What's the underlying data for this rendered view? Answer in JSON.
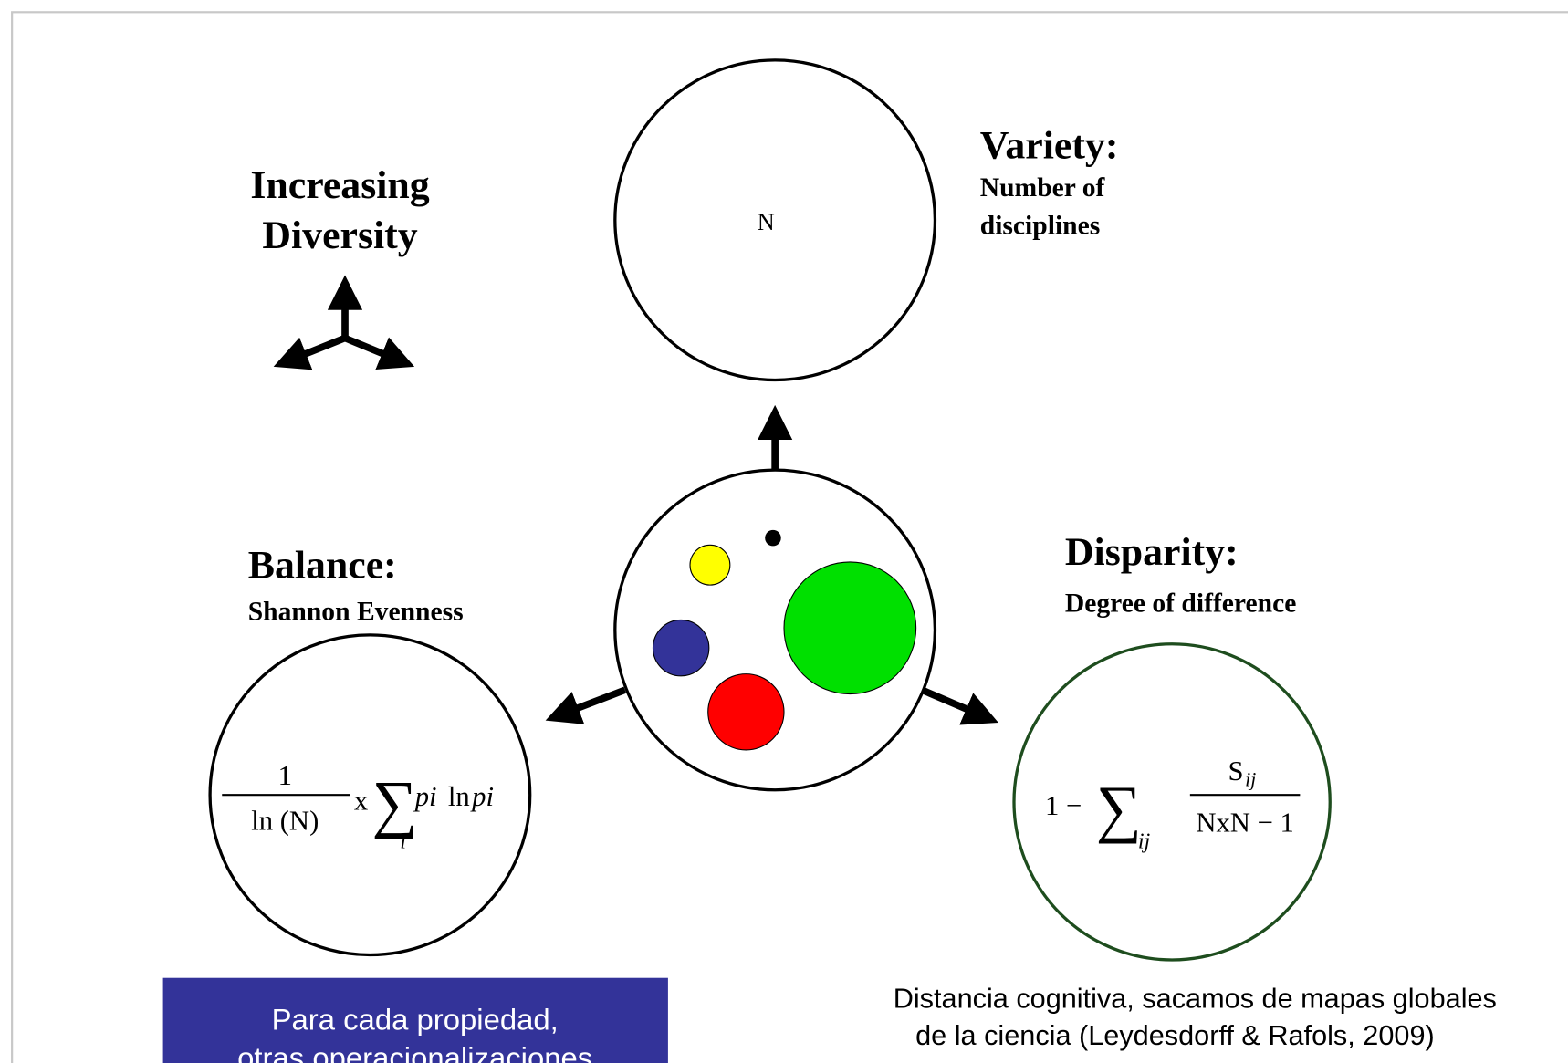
{
  "indicator": {
    "lines": [
      "Increasing",
      "Diversity"
    ]
  },
  "variety": {
    "title": "Variety:",
    "lines": [
      "Number of",
      "disciplines"
    ],
    "symbol": "N"
  },
  "balance": {
    "title": "Balance:",
    "subtitle": "Shannon Evenness",
    "formula": {
      "numerator": "1",
      "denominator": "ln (N)",
      "times": "x",
      "sum": "∑",
      "index": "i",
      "p1": "pi",
      "ln": "ln",
      "p2": "pi"
    }
  },
  "disparity": {
    "title": "Disparity:",
    "subtitle": "Degree of difference",
    "formula": {
      "one": "1 −",
      "sum": "∑",
      "index": "ij",
      "numerator": "S",
      "sub": "ij",
      "denominator": "NxN − 1"
    }
  },
  "note_left": {
    "lines": [
      "Para cada propiedad,",
      "otras operacionalizaciones"
    ]
  },
  "note_right": {
    "lines": [
      "Distancia cognitiva, sacamos de mapas globales",
      "de la ciencia (Leydesdorff & Rafols, 2009)"
    ]
  }
}
